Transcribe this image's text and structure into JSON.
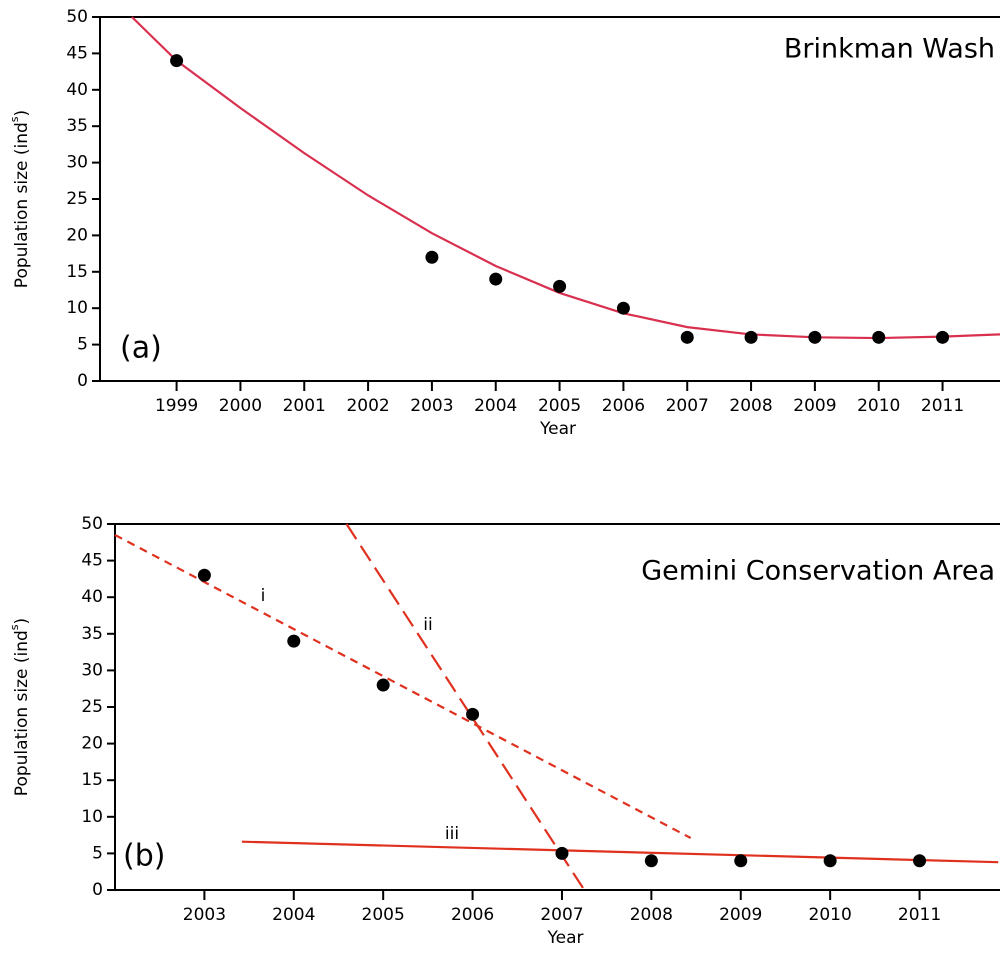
{
  "chart_data": [
    {
      "type": "scatter",
      "annotation": "Brinkman Wash",
      "panel": "(a)",
      "xlabel": "Year",
      "ylabel": [
        "Population size (ind",
        "s",
        ")"
      ],
      "xlim": [
        1997.8,
        2011.9
      ],
      "ylim": [
        0,
        50
      ],
      "xticks": [
        1999,
        2000,
        2001,
        2002,
        2003,
        2004,
        2005,
        2006,
        2007,
        2008,
        2009,
        2010,
        2011
      ],
      "yticks": [
        0,
        5,
        10,
        15,
        20,
        25,
        30,
        35,
        40,
        45,
        50
      ],
      "points": {
        "color": "#000000",
        "x": [
          1999,
          2003,
          2004,
          2005,
          2006,
          2007,
          2008,
          2009,
          2010,
          2011
        ],
        "values": [
          44,
          17,
          14,
          13,
          10,
          6,
          6,
          6,
          6,
          6
        ]
      },
      "lines": [
        {
          "color": "#d9304f",
          "style": "solid",
          "x": [
            1998.3,
            1999,
            2000,
            2001,
            2002,
            2003,
            2004,
            2005,
            2006,
            2007,
            2008,
            2009,
            2010,
            2011,
            2011.9
          ],
          "values": [
            50,
            44,
            37.5,
            31.3,
            25.5,
            20.3,
            15.8,
            12.1,
            9.3,
            7.4,
            6.4,
            6.0,
            5.9,
            6.1,
            6.4
          ]
        }
      ]
    },
    {
      "type": "scatter",
      "annotation": "Gemini Conservation Area",
      "panel": "(b)",
      "xlabel": "Year",
      "ylabel": [
        "Population size (ind",
        "s",
        ")"
      ],
      "xlim": [
        2002.0,
        2011.9
      ],
      "ylim": [
        0,
        50
      ],
      "xticks": [
        2003,
        2004,
        2005,
        2006,
        2007,
        2008,
        2009,
        2010,
        2011
      ],
      "yticks": [
        0,
        5,
        10,
        15,
        20,
        25,
        30,
        35,
        40,
        45,
        50
      ],
      "points": {
        "color": "#000000",
        "x": [
          2003,
          2004,
          2005,
          2006,
          2007,
          2008,
          2009,
          2010,
          2011
        ],
        "values": [
          43,
          34,
          28,
          24,
          5,
          4,
          4,
          4,
          4
        ]
      },
      "lines": [
        {
          "label": "i",
          "color": "#e0301e",
          "style": "short-dash",
          "x": [
            2002.0,
            2008.44
          ],
          "values": [
            48.5,
            7.1
          ]
        },
        {
          "label": "ii",
          "color": "#e0301e",
          "style": "long-dash",
          "x": [
            2004.59,
            2007.25
          ],
          "values": [
            50,
            0
          ]
        },
        {
          "label": "iii",
          "color": "#e0301e",
          "style": "solid",
          "x": [
            2003.42,
            2011.88
          ],
          "values": [
            6.6,
            3.8
          ]
        }
      ]
    }
  ]
}
